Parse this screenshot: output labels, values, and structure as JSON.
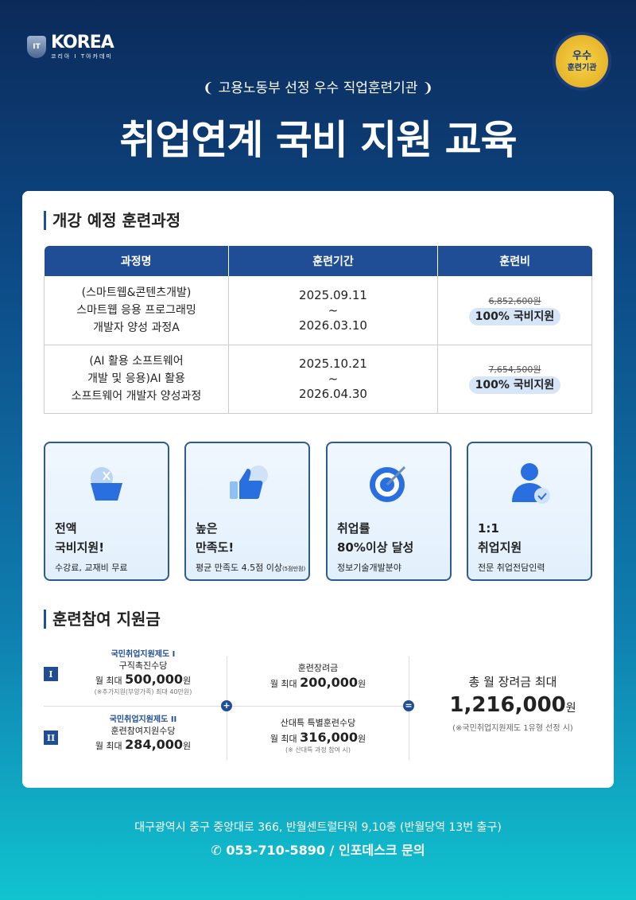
{
  "header": {
    "logo_main": "KOREA",
    "logo_sub": "코리아 I T아카데미",
    "logo_emblem": "IT",
    "badge_line1": "우수",
    "badge_line2": "훈련기관",
    "subtitle": "고용노동부 선정 우수 직업훈련기관",
    "title": "취업연계 국비 지원 교육"
  },
  "courses": {
    "section_title": "개강 예정 훈련과정",
    "columns": [
      "과정명",
      "훈련기간",
      "훈련비"
    ],
    "rows": [
      {
        "name": [
          "(스마트웹&콘텐츠개발)",
          "스마트웹 응용 프로그래밍",
          "개발자 양성 과정A"
        ],
        "start": "2025.09.11",
        "sep": "~",
        "end": "2026.03.10",
        "original_price": "6,852,600원",
        "support": "100% 국비지원"
      },
      {
        "name": [
          "(AI 활용 소프트웨어",
          "개발 및 응용)AI 활용",
          "소프트웨어 개발자 양성과정"
        ],
        "start": "2025.10.21",
        "sep": "~",
        "end": "2026.04.30",
        "original_price": "7,654,500원",
        "support": "100% 국비지원"
      }
    ]
  },
  "features": [
    {
      "line1": "전액",
      "line2": "국비지원!",
      "desc": "수강료, 교재비 무료",
      "icon": "discount-bag-icon"
    },
    {
      "line1": "높은",
      "line2": "만족도!",
      "desc": "평균 만족도 4.5점 이상",
      "desc_small": "(5점만점)",
      "icon": "thumbs-up-icon"
    },
    {
      "line1": "취업률",
      "line2": "80%이상 달성",
      "desc": "정보기술개발분야",
      "icon": "target-icon"
    },
    {
      "line1": "1:1",
      "line2": "취업지원",
      "desc": "전문 취업전담인력",
      "icon": "user-check-icon"
    }
  ],
  "subsidy": {
    "section_title": "훈련참여 지원금",
    "type1": {
      "badge": "I",
      "program": "국민취업지원제도 I",
      "name": "구직촉진수당",
      "prefix": "월 최대",
      "amount": "500,000",
      "unit": "원",
      "note": "(※추가지원(부양가족) 최대 40만원)"
    },
    "type2": {
      "badge": "II",
      "program": "국민취업지원제도 II",
      "name": "훈련참여지원수당",
      "prefix": "월 최대",
      "amount": "284,000",
      "unit": "원"
    },
    "plus": "+",
    "equals": "=",
    "incentive": {
      "name": "훈련장려금",
      "prefix": "월 최대",
      "amount": "200,000",
      "unit": "원"
    },
    "special": {
      "name": "산대특 특별훈련수당",
      "prefix": "월 최대",
      "amount": "316,000",
      "unit": "원",
      "note": "(※ 산대특 과정 참여 시)"
    },
    "total": {
      "label": "총 월 장려금 최대",
      "amount": "1,216,000",
      "unit": "원",
      "note": "(※국민취업지원제도 1유형 선정 시)"
    }
  },
  "footer": {
    "address": "대구광역시 중구 중앙대로 366, 반월센트럴타워 9,10층 (반월당역 13번 출구)",
    "phone": "053-710-5890",
    "phone_suffix": " / 인포데스크 문의"
  },
  "colors": {
    "primary": "#1f4e96",
    "accent_light": "#d6e6f8"
  }
}
